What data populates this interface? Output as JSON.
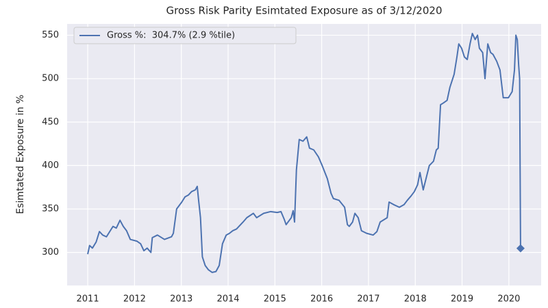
{
  "chart_data": {
    "type": "line",
    "title": "Gross Risk Parity Esimtated Exposure as of 3/12/2020",
    "y_label": "Esimtated Exposure in %",
    "x": [
      2011.0,
      2011.04,
      2011.1,
      2011.18,
      2011.25,
      2011.32,
      2011.4,
      2011.54,
      2011.61,
      2011.69,
      2011.76,
      2011.83,
      2011.91,
      2012.05,
      2012.13,
      2012.2,
      2012.27,
      2012.35,
      2012.38,
      2012.49,
      2012.64,
      2012.79,
      2012.83,
      2012.9,
      2013.01,
      2013.08,
      2013.15,
      2013.22,
      2013.3,
      2013.34,
      2013.37,
      2013.41,
      2013.45,
      2013.51,
      2013.58,
      2013.66,
      2013.74,
      2013.81,
      2013.88,
      2013.96,
      2014.03,
      2014.1,
      2014.18,
      2014.32,
      2014.4,
      2014.54,
      2014.61,
      2014.76,
      2014.91,
      2015.05,
      2015.13,
      2015.2,
      2015.24,
      2015.35,
      2015.39,
      2015.42,
      2015.46,
      2015.52,
      2015.6,
      2015.68,
      2015.74,
      2015.83,
      2015.93,
      2016.01,
      2016.12,
      2016.2,
      2016.25,
      2016.37,
      2016.49,
      2016.55,
      2016.59,
      2016.66,
      2016.71,
      2016.78,
      2016.85,
      2016.96,
      2017.1,
      2017.18,
      2017.25,
      2017.4,
      2017.44,
      2017.54,
      2017.66,
      2017.76,
      2017.83,
      2017.91,
      2017.98,
      2018.05,
      2018.1,
      2018.17,
      2018.23,
      2018.3,
      2018.39,
      2018.45,
      2018.49,
      2018.54,
      2018.6,
      2018.68,
      2018.74,
      2018.83,
      2018.89,
      2018.93,
      2018.99,
      2019.05,
      2019.11,
      2019.17,
      2019.22,
      2019.28,
      2019.33,
      2019.37,
      2019.44,
      2019.49,
      2019.55,
      2019.61,
      2019.66,
      2019.74,
      2019.81,
      2019.88,
      2019.99,
      2020.07,
      2020.12,
      2020.15,
      2020.18,
      2020.21,
      2020.23,
      2020.25
    ],
    "series": [
      {
        "name": "Gross %:  304.7% (2.9 %tile)",
        "color": "#4c72b0",
        "values": [
          298,
          308,
          305,
          312,
          324,
          320,
          318,
          330,
          328,
          337,
          330,
          325,
          315,
          313,
          310,
          302,
          305,
          300,
          317,
          320,
          315,
          318,
          322,
          350,
          358,
          364,
          366,
          370,
          372,
          376,
          360,
          340,
          295,
          285,
          280,
          277,
          278,
          285,
          310,
          320,
          322,
          325,
          327,
          335,
          340,
          345,
          340,
          345,
          347,
          346,
          347,
          338,
          332,
          340,
          348,
          335,
          395,
          430,
          428,
          433,
          420,
          418,
          410,
          400,
          385,
          368,
          362,
          360,
          352,
          332,
          330,
          335,
          345,
          340,
          325,
          322,
          320,
          324,
          335,
          340,
          358,
          355,
          352,
          355,
          360,
          365,
          370,
          378,
          392,
          372,
          385,
          400,
          405,
          418,
          420,
          470,
          472,
          475,
          490,
          505,
          525,
          540,
          535,
          525,
          522,
          540,
          552,
          545,
          550,
          535,
          530,
          500,
          540,
          530,
          528,
          520,
          510,
          478,
          478,
          485,
          510,
          550,
          545,
          515,
          500,
          304.7
        ]
      }
    ],
    "xlim": [
      2010.56,
      2020.69
    ],
    "xticks": [
      2011,
      2012,
      2013,
      2014,
      2015,
      2016,
      2017,
      2018,
      2019,
      2020
    ],
    "ylim": [
      262,
      563
    ],
    "yticks": [
      300,
      350,
      400,
      450,
      500,
      550
    ],
    "grid": true,
    "legend": "upper left",
    "last_point_marker": "diamond"
  }
}
